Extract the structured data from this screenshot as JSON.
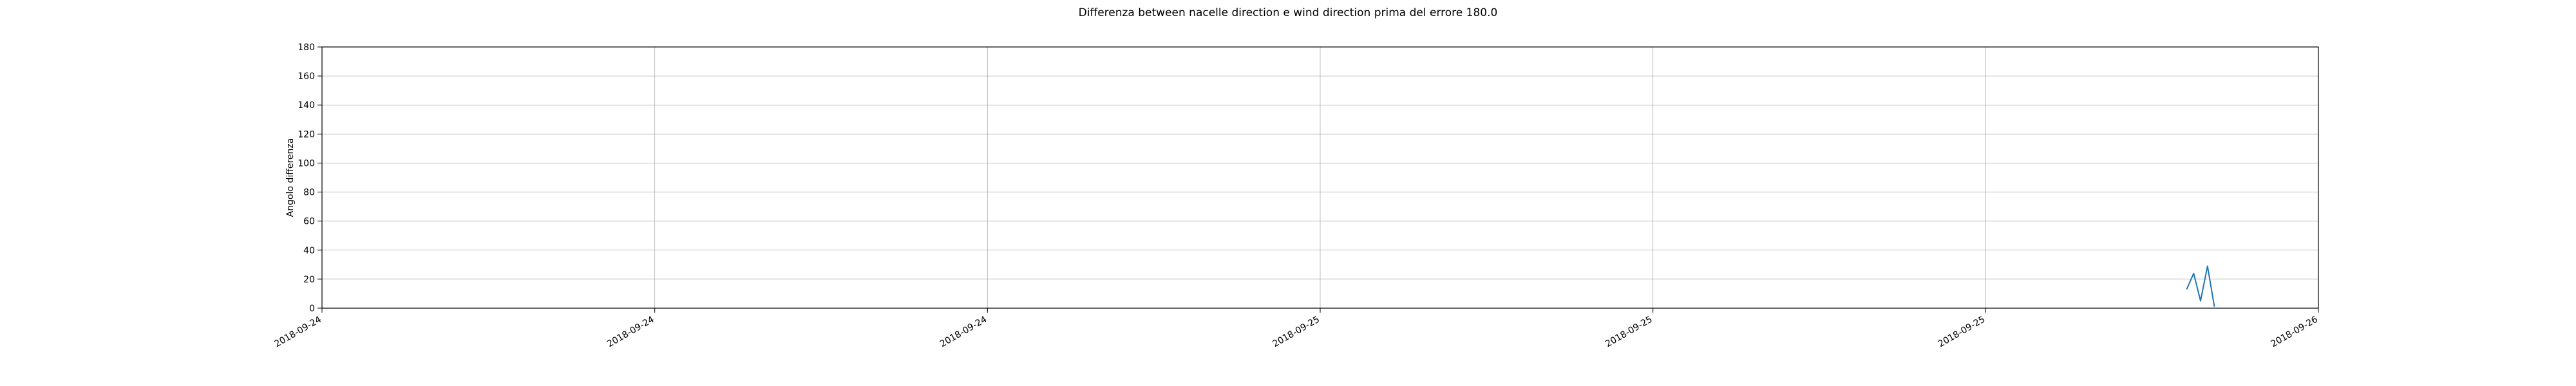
{
  "chart_data": {
    "type": "line",
    "title": "Differenza between nacelle direction e wind direction prima del errore 180.0",
    "xlabel": "",
    "ylabel": "Angolo differenza",
    "ylim": [
      0,
      180
    ],
    "y_ticks": [
      0,
      20,
      40,
      60,
      80,
      100,
      120,
      140,
      160,
      180
    ],
    "x_tick_labels": [
      "2018-09-24",
      "2018-09-24",
      "2018-09-24",
      "2018-09-25",
      "2018-09-25",
      "2018-09-25",
      "2018-09-26"
    ],
    "grid": true,
    "series": [
      {
        "color": "#1f77b4",
        "points": [
          {
            "x": "2018-09-25 20:50",
            "y": 13
          },
          {
            "x": "2018-09-25 21:00",
            "y": 24
          },
          {
            "x": "2018-09-25 21:10",
            "y": 5
          },
          {
            "x": "2018-09-25 21:20",
            "y": 29
          },
          {
            "x": "2018-09-25 21:30",
            "y": 1
          }
        ]
      }
    ]
  }
}
